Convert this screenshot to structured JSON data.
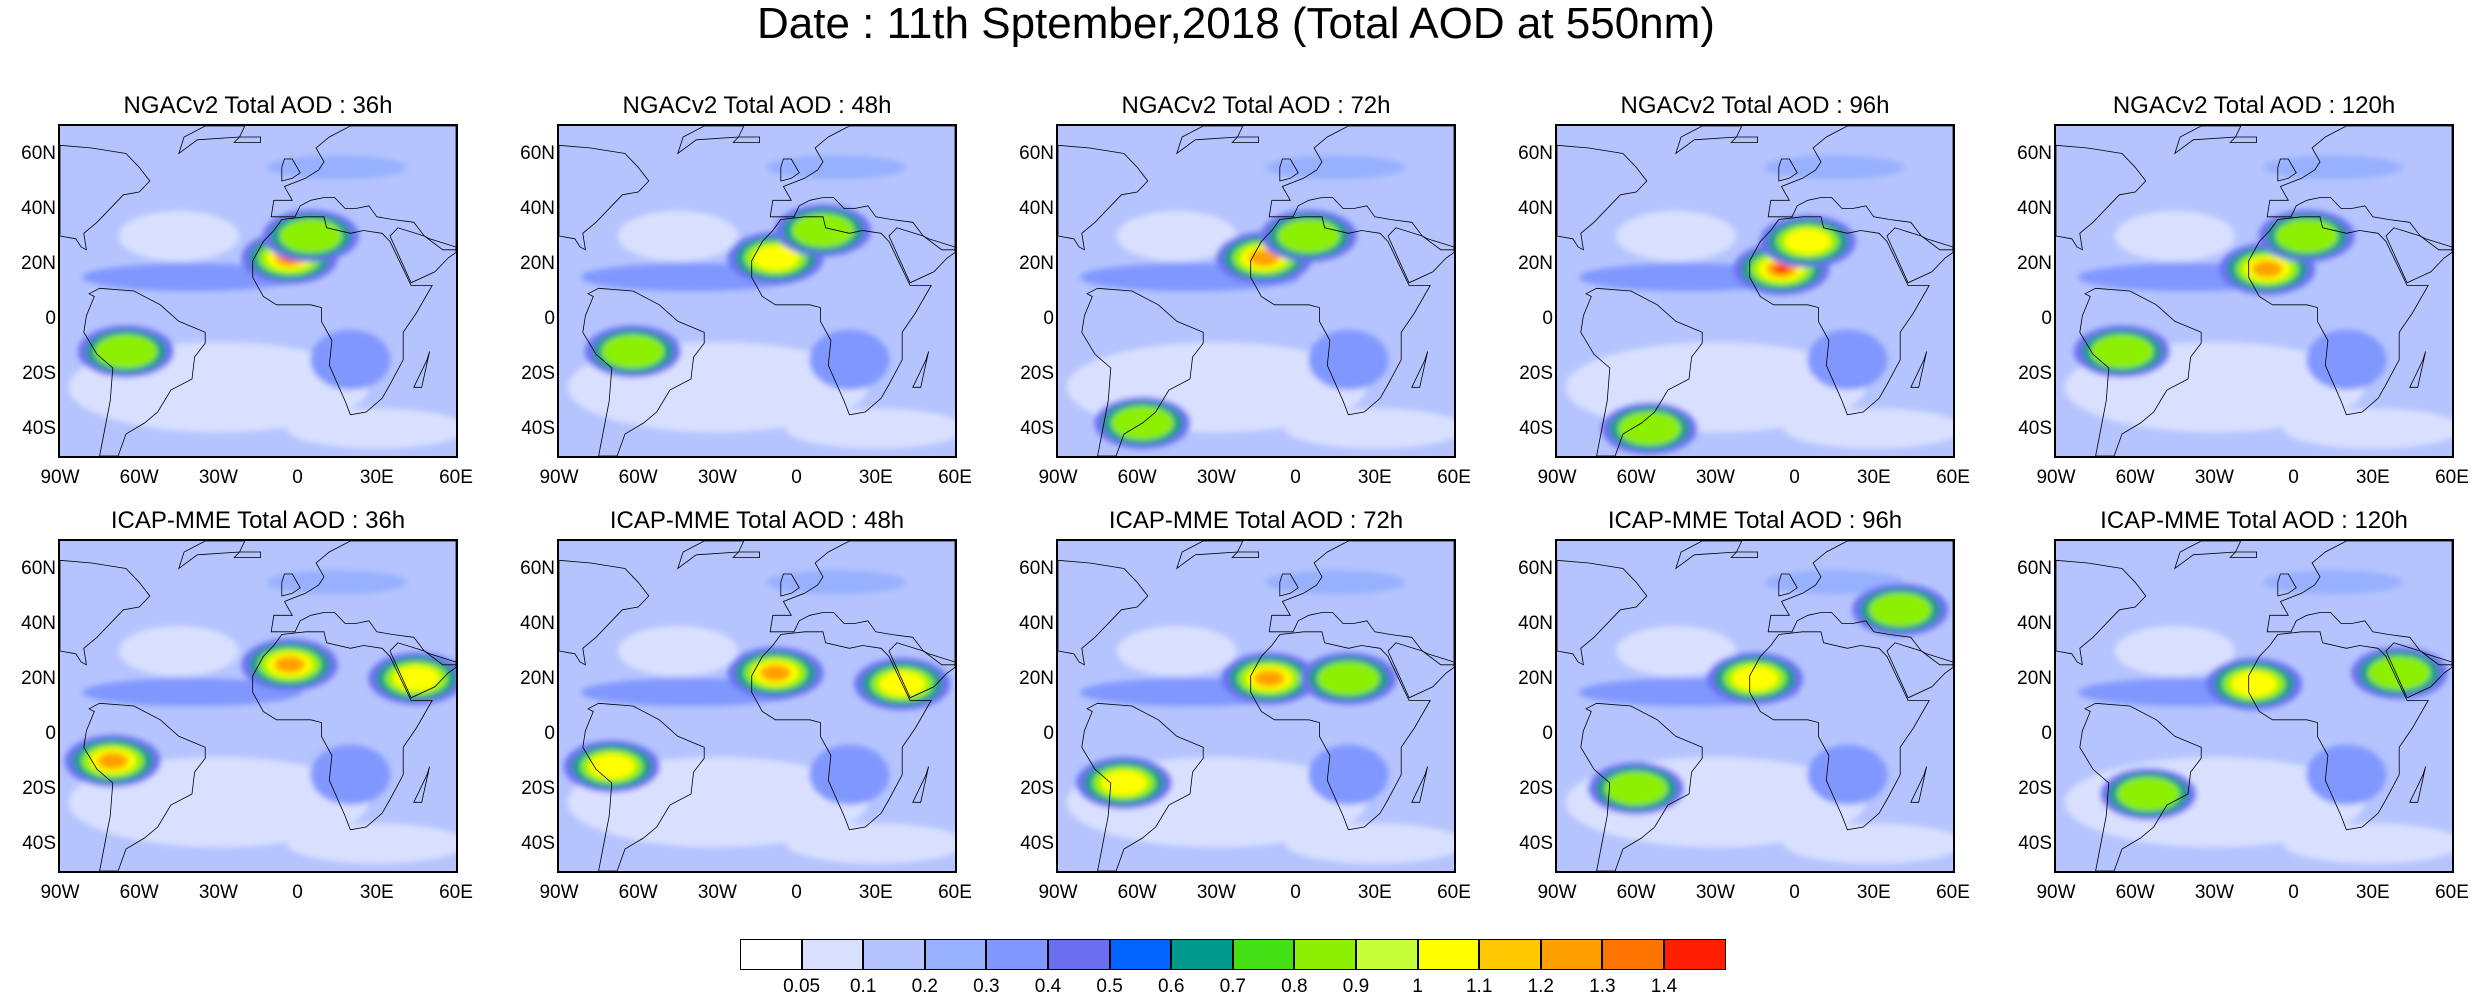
{
  "title": "Date : 11th Sptember,2018 (Total AOD at 550nm)",
  "lat_ticks": [
    "60N",
    "40N",
    "20N",
    "0",
    "20S",
    "40S"
  ],
  "lon_ticks": [
    "90W",
    "60W",
    "30W",
    "0",
    "30E",
    "60E"
  ],
  "domain": {
    "lon_range": [
      -90,
      60
    ],
    "lat_range": [
      -50,
      70
    ]
  },
  "panels": [
    {
      "title": "NGACv2 Total AOD : 36h",
      "model": "NGACv2",
      "lead": "36h",
      "plumes": [
        {
          "lon": -3,
          "lat": 22,
          "aod": 1.4
        },
        {
          "lon": 5,
          "lat": 30,
          "aod": 0.9
        },
        {
          "lon": -65,
          "lat": -12,
          "aod": 0.9
        }
      ]
    },
    {
      "title": "NGACv2 Total AOD : 48h",
      "model": "NGACv2",
      "lead": "48h",
      "plumes": [
        {
          "lon": -8,
          "lat": 22,
          "aod": 1.1
        },
        {
          "lon": 10,
          "lat": 32,
          "aod": 0.9
        },
        {
          "lon": -62,
          "lat": -12,
          "aod": 0.9
        }
      ]
    },
    {
      "title": "NGACv2 Total AOD : 72h",
      "model": "NGACv2",
      "lead": "72h",
      "plumes": [
        {
          "lon": -12,
          "lat": 22,
          "aod": 1.3
        },
        {
          "lon": 5,
          "lat": 30,
          "aod": 0.9
        },
        {
          "lon": -58,
          "lat": -38,
          "aod": 0.9
        }
      ]
    },
    {
      "title": "NGACv2 Total AOD : 96h",
      "model": "NGACv2",
      "lead": "96h",
      "plumes": [
        {
          "lon": -5,
          "lat": 18,
          "aod": 1.4
        },
        {
          "lon": 5,
          "lat": 28,
          "aod": 1.0
        },
        {
          "lon": -55,
          "lat": -40,
          "aod": 0.8
        }
      ]
    },
    {
      "title": "NGACv2 Total AOD : 120h",
      "model": "NGACv2",
      "lead": "120h",
      "plumes": [
        {
          "lon": -10,
          "lat": 18,
          "aod": 1.2
        },
        {
          "lon": 5,
          "lat": 30,
          "aod": 0.9
        },
        {
          "lon": -65,
          "lat": -12,
          "aod": 0.8
        }
      ]
    },
    {
      "title": "ICAP-MME Total AOD : 36h",
      "model": "ICAP-MME",
      "lead": "36h",
      "plumes": [
        {
          "lon": -3,
          "lat": 25,
          "aod": 1.3
        },
        {
          "lon": 45,
          "lat": 20,
          "aod": 1.0
        },
        {
          "lon": -70,
          "lat": -10,
          "aod": 1.2
        }
      ]
    },
    {
      "title": "ICAP-MME Total AOD : 48h",
      "model": "ICAP-MME",
      "lead": "48h",
      "plumes": [
        {
          "lon": -8,
          "lat": 22,
          "aod": 1.3
        },
        {
          "lon": 40,
          "lat": 18,
          "aod": 1.0
        },
        {
          "lon": -70,
          "lat": -12,
          "aod": 1.1
        }
      ]
    },
    {
      "title": "ICAP-MME Total AOD : 72h",
      "model": "ICAP-MME",
      "lead": "72h",
      "plumes": [
        {
          "lon": -10,
          "lat": 20,
          "aod": 1.2
        },
        {
          "lon": 20,
          "lat": 20,
          "aod": 0.9
        },
        {
          "lon": -65,
          "lat": -18,
          "aod": 1.0
        }
      ]
    },
    {
      "title": "ICAP-MME Total AOD : 96h",
      "model": "ICAP-MME",
      "lead": "96h",
      "plumes": [
        {
          "lon": -15,
          "lat": 20,
          "aod": 1.0
        },
        {
          "lon": 40,
          "lat": 45,
          "aod": 0.8
        },
        {
          "lon": -60,
          "lat": -20,
          "aod": 0.9
        }
      ]
    },
    {
      "title": "ICAP-MME Total AOD : 120h",
      "model": "ICAP-MME",
      "lead": "120h",
      "plumes": [
        {
          "lon": -15,
          "lat": 18,
          "aod": 1.0
        },
        {
          "lon": 40,
          "lat": 22,
          "aod": 0.9
        },
        {
          "lon": -55,
          "lat": -22,
          "aod": 0.9
        }
      ]
    }
  ],
  "colorbar": {
    "labels": [
      "0.05",
      "0.1",
      "0.2",
      "0.3",
      "0.4",
      "0.5",
      "0.6",
      "0.7",
      "0.8",
      "0.9",
      "1",
      "1.1",
      "1.2",
      "1.3",
      "1.4"
    ],
    "colors": [
      "#ffffff",
      "#d9e0ff",
      "#b5c4ff",
      "#97b0ff",
      "#8097ff",
      "#6a6ff0",
      "#0062ff",
      "#00998c",
      "#43e016",
      "#8cf000",
      "#c4ff3a",
      "#ffff00",
      "#ffc800",
      "#ffa000",
      "#ff7300",
      "#ff1e00"
    ]
  }
}
